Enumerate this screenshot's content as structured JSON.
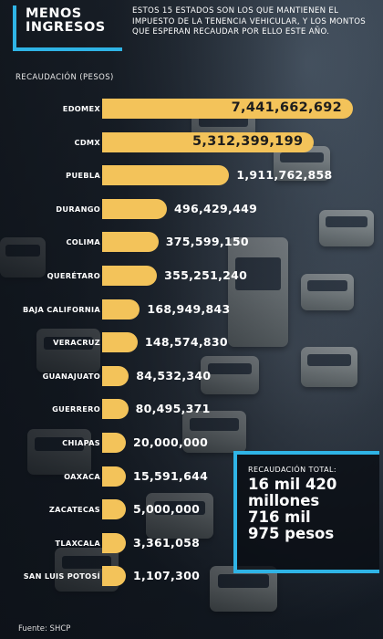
{
  "header": {
    "title_line1": "MENOS",
    "title_line2": "INGRESOS",
    "description": "ESTOS 15 ESTADOS SON LOS QUE MANTIENEN EL IMPUESTO DE LA TENENCIA VEHICULAR, Y LOS MONTOS QUE ESPERAN RECAUDAR POR ELLO ESTE AÑO."
  },
  "total": {
    "caption": "RECAUDACIÓN TOTAL:",
    "line1": "16 mil 420",
    "line2": "millones",
    "line3": "716 mil",
    "line4": "975 pesos"
  },
  "source": "Fuente: SHCP",
  "colors": {
    "bar": "#f3c35a",
    "accent": "#2fb4e6"
  },
  "chart_data": {
    "type": "bar",
    "orientation": "horizontal",
    "ylabel": "RECAUDACIÓN (PESOS)",
    "categories": [
      "EDOMEX",
      "CDMX",
      "PUEBLA",
      "DURANGO",
      "COLIMA",
      "QUERÉTARO",
      "BAJA CALIFORNIA",
      "VERACRUZ",
      "GUANAJUATO",
      "GUERRERO",
      "CHIAPAS",
      "OAXACA",
      "ZACATECAS",
      "TLAXCALA",
      "SAN LUIS POTOSÍ"
    ],
    "values": [
      7441662692,
      5312399199,
      1911762858,
      496429449,
      375599150,
      355251240,
      168949843,
      148574830,
      84532340,
      80495371,
      20000000,
      15591644,
      5000000,
      3361058,
      1107300
    ],
    "value_labels": [
      "7,441,662,692",
      "5,312,399,199",
      "1,911,762,858",
      "496,429,449",
      "375,599,150",
      "355,251,240",
      "168,949,843",
      "148,574,830",
      "84,532,340",
      "80,495,371",
      "20,000,000",
      "15,591,644",
      "5,000,000",
      "3,361,058",
      "1,107,300"
    ]
  }
}
